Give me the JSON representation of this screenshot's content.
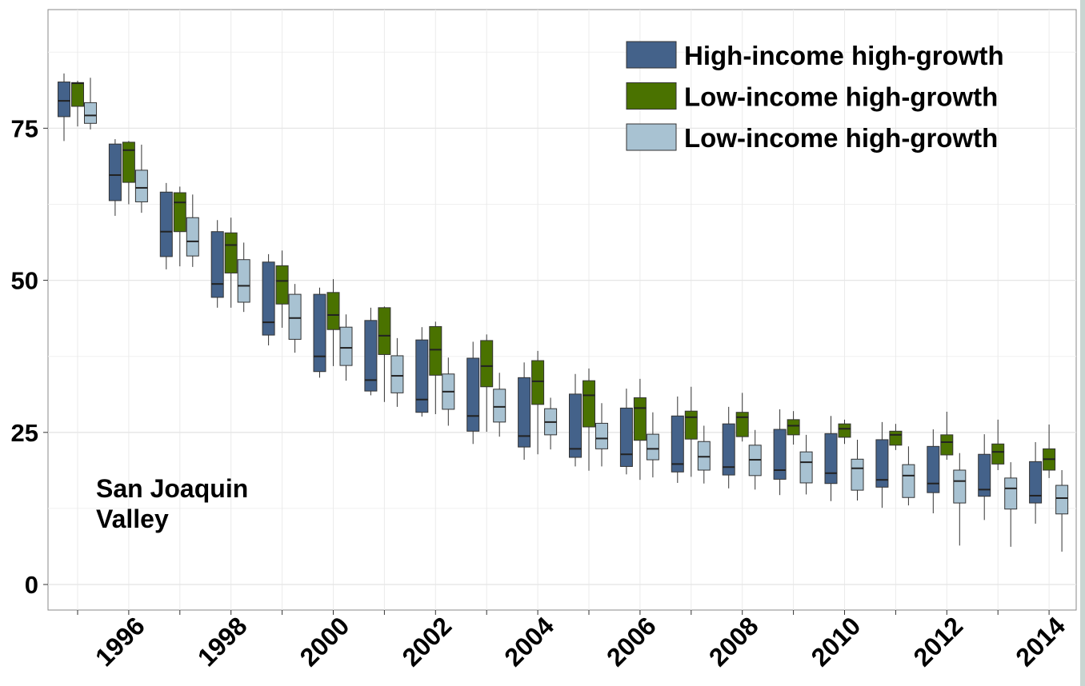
{
  "chart_data": {
    "type": "box",
    "categories": [
      null,
      "1996",
      null,
      "1998",
      null,
      "2000",
      null,
      "2002",
      null,
      "2004",
      null,
      "2006",
      null,
      "2008",
      null,
      "2010",
      null,
      "2012",
      null,
      "2014"
    ],
    "annotation": "San Joaquin Valley",
    "ylim": [
      -4.2,
      94.5
    ],
    "yticks": [
      0,
      25,
      50,
      75
    ],
    "grid": true,
    "legend": "top-right",
    "series": [
      {
        "name": "High-income high-growth",
        "color": "#44628a",
        "values": [
          [
            72.9,
            76.9,
            79.5,
            82.6,
            84
          ],
          [
            60.6,
            63.1,
            67.3,
            72.4,
            73.2
          ],
          [
            51.8,
            53.9,
            58,
            64.5,
            66
          ],
          [
            45.5,
            47.2,
            49.4,
            58,
            59.9
          ],
          [
            39.3,
            41,
            43.1,
            53,
            54.3
          ],
          [
            34,
            35,
            37.5,
            47.7,
            48.8
          ],
          [
            31.1,
            31.8,
            33.6,
            43.4,
            45.5
          ],
          [
            27.6,
            28.3,
            30.4,
            40.2,
            42.3
          ],
          [
            23.1,
            25.2,
            27.7,
            37.2,
            39.9
          ],
          [
            20.5,
            22.6,
            24.4,
            34,
            36.5
          ],
          [
            19.4,
            20.9,
            22.3,
            31.3,
            34.6
          ],
          [
            18.1,
            19.4,
            21.4,
            29,
            32.2
          ],
          [
            16.7,
            18.5,
            19.8,
            27.7,
            30.9
          ],
          [
            15.8,
            18,
            19.3,
            26.4,
            29.2
          ],
          [
            14.7,
            17.3,
            18.8,
            25.5,
            28.8
          ],
          [
            13.7,
            16.6,
            18.3,
            24.8,
            27.7
          ],
          [
            12.6,
            16,
            17.2,
            23.8,
            26.7
          ],
          [
            11.7,
            15.1,
            16.6,
            22.7,
            25.5
          ],
          [
            10.6,
            14.5,
            15.6,
            21.4,
            24.7
          ],
          [
            10,
            13.4,
            14.6,
            20.2,
            23.4
          ]
        ]
      },
      {
        "name": "Low-income high-growth",
        "color": "#4a7200",
        "values": [
          [
            75.3,
            78.6,
            82.4,
            82.5,
            82.8
          ],
          [
            62.5,
            66.1,
            71.4,
            72.7,
            72.9
          ],
          [
            52.3,
            58,
            62.8,
            64.4,
            65.4
          ],
          [
            45.5,
            51.2,
            55.8,
            57.8,
            60.3
          ],
          [
            42.2,
            46.1,
            49.9,
            52.4,
            54.9
          ],
          [
            35.9,
            41.9,
            44.3,
            48,
            50.2
          ],
          [
            30,
            37.8,
            40.9,
            45.5,
            45.7
          ],
          [
            28,
            34.4,
            38.6,
            42.4,
            43.2
          ],
          [
            25.1,
            32.5,
            35.9,
            40.1,
            41.1
          ],
          [
            21.4,
            29.6,
            33.4,
            36.8,
            38.4
          ],
          [
            18.7,
            25.9,
            31.1,
            33.5,
            35.5
          ],
          [
            17.2,
            23.7,
            29,
            30.7,
            33.8
          ],
          [
            17.7,
            23.9,
            27.5,
            28.5,
            32.5
          ],
          [
            23.5,
            24.3,
            27.5,
            28.3,
            31.5
          ],
          [
            23,
            24.6,
            26.1,
            27.1,
            28.5
          ],
          [
            23.1,
            24.2,
            25.6,
            26.4,
            27.1
          ],
          [
            22.1,
            22.9,
            24.6,
            25.2,
            26.4
          ],
          [
            20.5,
            21.3,
            23.4,
            24.6,
            28.4
          ],
          [
            18.8,
            19.8,
            21.8,
            23.1,
            27.1
          ],
          [
            17.5,
            18.8,
            20.6,
            22.3,
            26.3
          ]
        ]
      },
      {
        "name": "Low-income high-growth",
        "color": "#a8c2d2",
        "values": [
          [
            74.8,
            75.8,
            77.1,
            79.2,
            83.3
          ],
          [
            61.1,
            62.9,
            65.2,
            68.1,
            72.3
          ],
          [
            52.2,
            54,
            56.4,
            60.3,
            64.1
          ],
          [
            44.8,
            46.4,
            49.1,
            53.4,
            56.2
          ],
          [
            38.1,
            40.3,
            43.8,
            47.7,
            49.4
          ],
          [
            33.5,
            36,
            38.9,
            42.3,
            44.4
          ],
          [
            29.2,
            31.5,
            34.3,
            37.6,
            40.5
          ],
          [
            26.1,
            28.8,
            31.7,
            34.6,
            37.3
          ],
          [
            24.3,
            26.7,
            29.2,
            32.1,
            34.8
          ],
          [
            22.2,
            24.6,
            26.7,
            28.9,
            30.7
          ],
          [
            19.4,
            22.3,
            24,
            26.5,
            29.8
          ],
          [
            17.6,
            20.5,
            22.3,
            24.7,
            28.3
          ],
          [
            16.6,
            18.8,
            21,
            23.5,
            26.1
          ],
          [
            15.6,
            17.9,
            20.5,
            22.9,
            25.4
          ],
          [
            14.8,
            16.7,
            20.1,
            21.8,
            24.6
          ],
          [
            13.8,
            15.5,
            19.1,
            20.6,
            23.8
          ],
          [
            13,
            14.3,
            17.9,
            19.7,
            22.7
          ],
          [
            6.4,
            13.4,
            17,
            18.8,
            21.6
          ],
          [
            6.2,
            12.4,
            15.8,
            17.5,
            20.1
          ],
          [
            5.4,
            11.6,
            14.2,
            16.3,
            18.8
          ]
        ]
      }
    ]
  }
}
